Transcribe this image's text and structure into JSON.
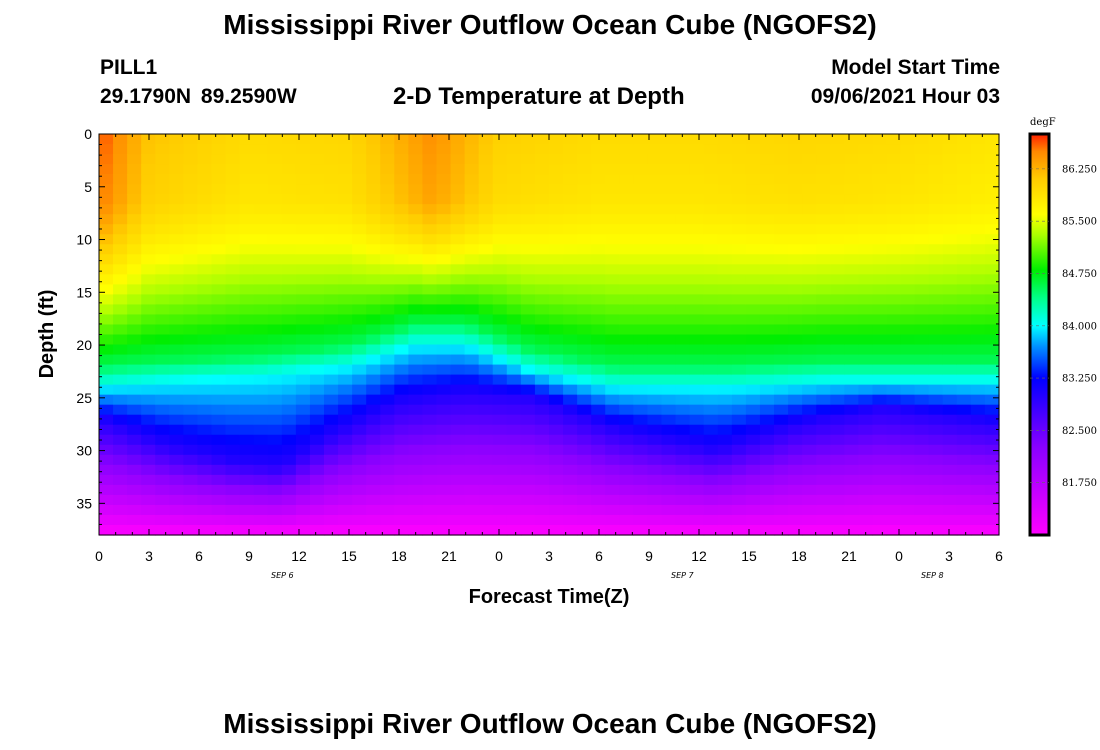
{
  "header": {
    "title": "Mississippi River Outflow Ocean Cube (NGOFS2)",
    "station_id": "PILL1",
    "station_coords": "29.1790N  89.2590W",
    "subtitle": "2-D Temperature at Depth",
    "model_label": "Model Start Time",
    "model_value": "09/06/2021 Hour 03"
  },
  "footer": {
    "title": "Mississippi River Outflow Ocean Cube (NGOFS2)"
  },
  "chart_data": {
    "type": "heatmap",
    "title": "2-D Temperature at Depth",
    "xlabel": "Forecast Time(Z)",
    "ylabel": "Depth (ft)",
    "x_tick_labels": [
      "0",
      "3",
      "6",
      "9",
      "12",
      "15",
      "18",
      "21",
      "0",
      "3",
      "6",
      "9",
      "12",
      "15",
      "18",
      "21",
      "0",
      "3",
      "6"
    ],
    "x_day_labels": [
      {
        "label": "SEP 6",
        "hour": 11
      },
      {
        "label": "SEP 7",
        "hour": 35
      },
      {
        "label": "SEP 8",
        "hour": 50
      }
    ],
    "x_range_hours": [
      0,
      54
    ],
    "y_tick_labels": [
      "0",
      "5",
      "10",
      "15",
      "20",
      "25",
      "30",
      "35"
    ],
    "y_range_ft": [
      0,
      38
    ],
    "y_inverted": true,
    "colorbar": {
      "unit": "degF",
      "range": [
        81.0,
        86.75
      ],
      "tick_labels": [
        "86.250",
        "85.500",
        "84.750",
        "84.000",
        "83.250",
        "82.500",
        "81.750"
      ],
      "tick_values": [
        86.25,
        85.5,
        84.75,
        84.0,
        83.25,
        82.5,
        81.75
      ],
      "stops": [
        {
          "value": 81.0,
          "color": "#ff00ff"
        },
        {
          "value": 82.25,
          "color": "#8a00ff"
        },
        {
          "value": 83.25,
          "color": "#0000ff"
        },
        {
          "value": 83.7,
          "color": "#0090ff"
        },
        {
          "value": 84.0,
          "color": "#00ffff"
        },
        {
          "value": 84.4,
          "color": "#00ff88"
        },
        {
          "value": 84.8,
          "color": "#00ee00"
        },
        {
          "value": 85.3,
          "color": "#aaff00"
        },
        {
          "value": 85.6,
          "color": "#ffff00"
        },
        {
          "value": 86.1,
          "color": "#ffcc00"
        },
        {
          "value": 86.5,
          "color": "#ff8800"
        },
        {
          "value": 86.75,
          "color": "#ff2000"
        }
      ]
    },
    "grid": false,
    "surface_temperature_degF": [
      {
        "hour": 0,
        "value": 86.6
      },
      {
        "hour": 3,
        "value": 86.1
      },
      {
        "hour": 9,
        "value": 85.9
      },
      {
        "hour": 15,
        "value": 85.95
      },
      {
        "hour": 20,
        "value": 86.4
      },
      {
        "hour": 24,
        "value": 86.0
      },
      {
        "hour": 30,
        "value": 85.9
      },
      {
        "hour": 36,
        "value": 85.9
      },
      {
        "hour": 42,
        "value": 85.95
      },
      {
        "hour": 48,
        "value": 85.9
      },
      {
        "hour": 54,
        "value": 85.8
      }
    ],
    "isotherm_84_depth_ft": [
      {
        "hour": 0,
        "value": 24.0
      },
      {
        "hour": 4,
        "value": 23.5
      },
      {
        "hour": 10,
        "value": 23.0
      },
      {
        "hour": 15,
        "value": 22.0
      },
      {
        "hour": 19,
        "value": 20.0
      },
      {
        "hour": 22,
        "value": 20.0
      },
      {
        "hour": 26,
        "value": 22.5
      },
      {
        "hour": 31,
        "value": 24.0
      },
      {
        "hour": 38,
        "value": 24.0
      },
      {
        "hour": 44,
        "value": 23.5
      },
      {
        "hour": 50,
        "value": 23.5
      },
      {
        "hour": 54,
        "value": 23.5
      }
    ],
    "isotherm_83_depth_ft": [
      {
        "hour": 0,
        "value": 27.0
      },
      {
        "hour": 4,
        "value": 29.5
      },
      {
        "hour": 8,
        "value": 31.0
      },
      {
        "hour": 11,
        "value": 31.5
      },
      {
        "hour": 14,
        "value": 28.5
      },
      {
        "hour": 18,
        "value": 25.5
      },
      {
        "hour": 22,
        "value": 24.5
      },
      {
        "hour": 26,
        "value": 25.0
      },
      {
        "hour": 31,
        "value": 28.0
      },
      {
        "hour": 37,
        "value": 30.0
      },
      {
        "hour": 42,
        "value": 27.5
      },
      {
        "hour": 47,
        "value": 26.0
      },
      {
        "hour": 54,
        "value": 27.5
      }
    ]
  }
}
